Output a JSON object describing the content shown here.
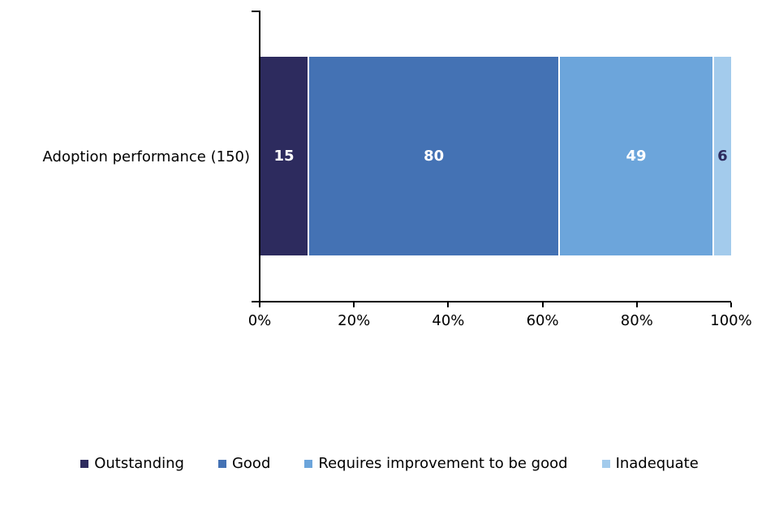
{
  "chart_data": {
    "type": "bar",
    "orientation": "horizontal",
    "stacked": true,
    "title": "",
    "categories": [
      "Adoption performance (150)"
    ],
    "total": 150,
    "series": [
      {
        "name": "Outstanding",
        "values": [
          15
        ],
        "color": "#2D2B5E",
        "label_color": "#FFFFFF"
      },
      {
        "name": "Good",
        "values": [
          80
        ],
        "color": "#4472B4",
        "label_color": "#FFFFFF"
      },
      {
        "name": "Requires improvement to be good",
        "values": [
          49
        ],
        "color": "#6CA5DB",
        "label_color": "#FFFFFF"
      },
      {
        "name": "Inadequate",
        "values": [
          6
        ],
        "color": "#A3CBEC",
        "label_color": "#2D2B5E"
      }
    ],
    "x_axis": {
      "min": 0,
      "max": 100,
      "unit": "percent",
      "tick_labels": [
        "0%",
        "20%",
        "40%",
        "60%",
        "80%",
        "100%"
      ]
    },
    "grid": false,
    "legend_position": "bottom",
    "axis_color": "#000000",
    "text_color": "#000000",
    "background": "#FFFFFF"
  }
}
